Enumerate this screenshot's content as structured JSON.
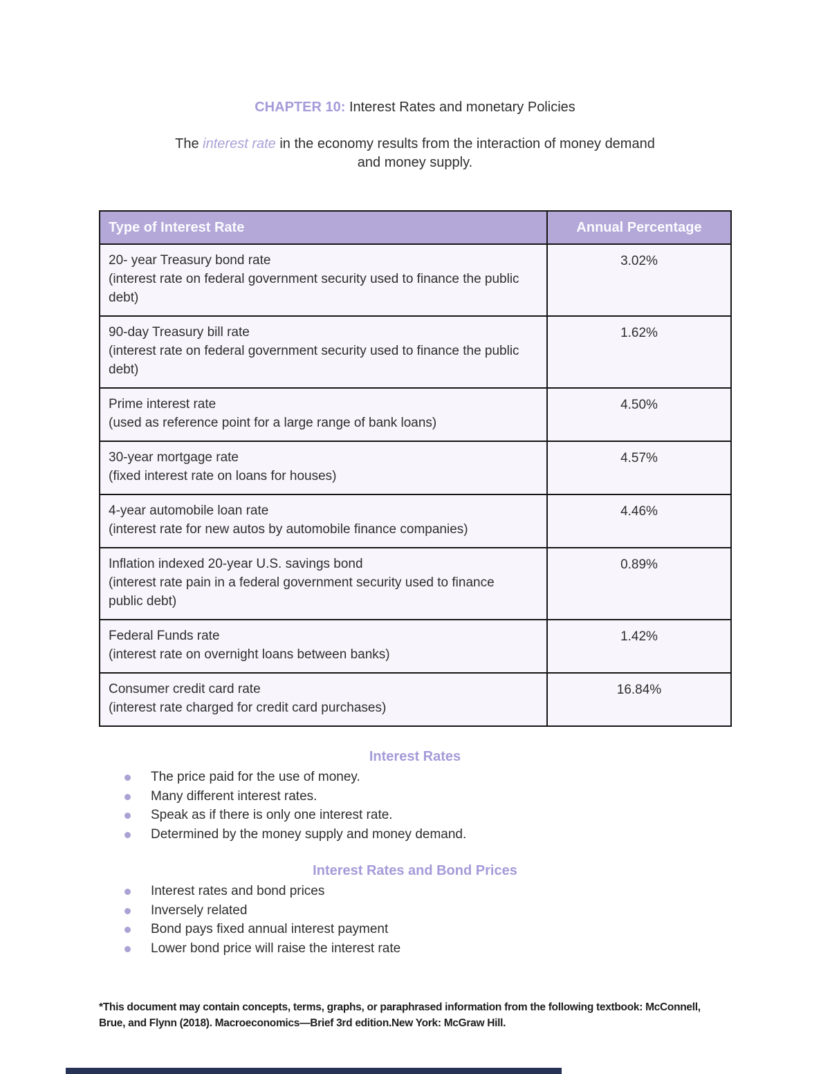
{
  "title": {
    "chapter": "CHAPTER 10:",
    "rest": "Interest Rates and monetary Policies"
  },
  "subtitle": {
    "prefix": "The ",
    "emphasis": "interest rate",
    "line1_rest": " in the economy results from the interaction of money demand",
    "line2": "and money supply."
  },
  "table": {
    "headers": {
      "type": "Type of Interest Rate",
      "percentage": "Annual Percentage"
    },
    "rows": [
      {
        "name": "20- year Treasury bond rate",
        "description": "(interest rate on federal government security used to finance the public debt)",
        "value": "3.02%"
      },
      {
        "name": "90-day Treasury bill rate",
        "description": "(interest rate on federal government security used to finance the public debt)",
        "value": "1.62%"
      },
      {
        "name": "Prime interest rate",
        "description": "(used as reference point for a large range of bank loans)",
        "value": "4.50%"
      },
      {
        "name": "30-year mortgage rate",
        "description": "(fixed interest rate on loans for houses)",
        "value": "4.57%"
      },
      {
        "name": "4-year automobile loan rate",
        "description": "(interest rate for new autos by automobile finance companies)",
        "value": "4.46%"
      },
      {
        "name": "Inflation indexed 20-year U.S. savings bond",
        "description": "(interest rate pain in a federal government security used to finance public debt)",
        "value": "0.89%"
      },
      {
        "name": "Federal Funds rate",
        "description": "(interest rate on overnight loans between banks)",
        "value": "1.42%"
      },
      {
        "name": "Consumer credit card rate",
        "description": "(interest rate charged for credit card purchases)",
        "value": "16.84%"
      }
    ]
  },
  "sections": [
    {
      "heading": "Interest Rates",
      "bullets": [
        "The price paid for the use of money.",
        "Many different interest rates.",
        "Speak as if there is only one interest rate.",
        "Determined by the money supply and money demand."
      ]
    },
    {
      "heading": "Interest Rates and Bond Prices",
      "bullets": [
        "Interest rates and bond prices",
        "Inversely related",
        "Bond pays fixed annual interest payment",
        "Lower bond price will raise the interest rate"
      ]
    }
  ],
  "footnote": {
    "line1": "*This document may contain concepts, terms, graphs, or paraphrased information from the following textbook: McConnell,",
    "line2": "Brue, and Flynn (2018). Macroeconomics—Brief 3rd edition.New York: McGraw Hill."
  },
  "colors": {
    "accent_purple": "#a49bd9",
    "table_header_bg": "#b3a8d8",
    "table_row_bg": "#f8f6fc",
    "bullet_dot": "#aaa2d4",
    "bottom_bar": "#263357"
  }
}
